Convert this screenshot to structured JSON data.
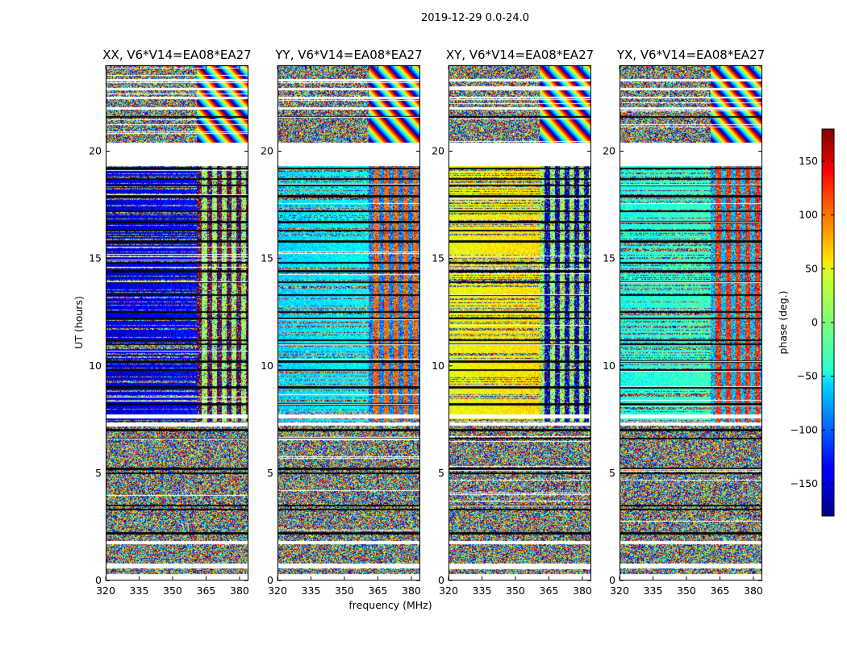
{
  "figure": {
    "suptitle": "2019-12-29 0.0-24.0"
  },
  "chart_data": {
    "type": "heatmap",
    "panels": [
      {
        "title": "XX, V6*V14=EA08*EA27",
        "polarization": "XX",
        "baseline": "V6*V14=EA08*EA27"
      },
      {
        "title": "YY, V6*V14=EA08*EA27",
        "polarization": "YY",
        "baseline": "V6*V14=EA08*EA27"
      },
      {
        "title": "XY, V6*V14=EA08*EA27",
        "polarization": "XY",
        "baseline": "V6*V14=EA08*EA27"
      },
      {
        "title": "YX, V6*V14=EA08*EA27",
        "polarization": "YX",
        "baseline": "V6*V14=EA08*EA27"
      }
    ],
    "xlabel": "frequency (MHz)",
    "ylabel": "UT (hours)",
    "xlim": [
      320,
      384
    ],
    "ylim": [
      0,
      24
    ],
    "xticks": [
      320,
      335,
      350,
      365,
      380
    ],
    "yticks": [
      0,
      5,
      10,
      15,
      20
    ],
    "colorbar": {
      "label": "phase (deg.)",
      "range": [
        -180,
        180
      ],
      "ticks": [
        150,
        100,
        50,
        0,
        -50,
        -100,
        -150
      ],
      "tick_labels": [
        "150",
        "100",
        "50",
        "0",
        "−50",
        "−100",
        "−150"
      ],
      "colormap": "jet"
    },
    "flagged_time_ranges_hours": [
      [
        0.0,
        0.3
      ],
      [
        0.55,
        0.8
      ],
      [
        1.7,
        1.85
      ],
      [
        7.2,
        7.35
      ],
      [
        7.55,
        7.75
      ],
      [
        19.3,
        20.4
      ],
      [
        21.95,
        22.05
      ],
      [
        22.45,
        22.55
      ],
      [
        22.85,
        22.95
      ],
      [
        23.25,
        23.35
      ]
    ],
    "dark_gap_rows_hours": [
      2.2,
      3.3,
      3.5,
      5.0,
      5.2,
      6.6,
      7.0,
      8.2,
      9.0,
      9.8,
      10.2,
      11.0,
      11.2,
      12.2,
      12.5,
      13.3,
      13.9,
      14.4,
      14.8,
      15.8,
      16.3,
      16.7,
      17.2,
      17.9,
      18.4,
      18.7,
      19.2,
      21.6
    ],
    "phase_regime_boundary_mhz": 361,
    "estimated_coherent_phase_deg": {
      "XX": -150,
      "YY": -60,
      "XY": 40,
      "YX": -40
    }
  }
}
